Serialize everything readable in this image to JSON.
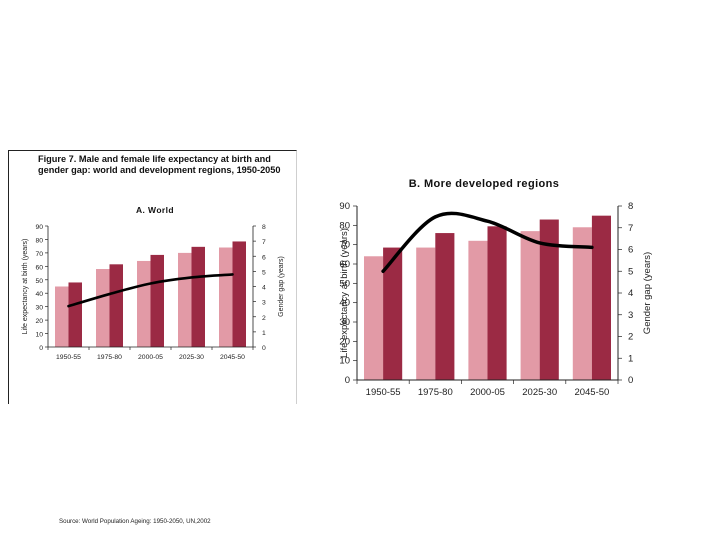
{
  "figure": {
    "title": "Figure 7. Male and female life expectancy at birth and gender gap: world and development regions, 1950-2050"
  },
  "source_note": "Source: World Population Ageing:  1950-2050, UN,2002",
  "colors": {
    "male_bar": "#e29aa6",
    "female_bar": "#9b2a44",
    "gap_line": "#000000"
  },
  "chart_data": [
    {
      "type": "bar",
      "title": "A. World",
      "categories": [
        "1950-55",
        "1975-80",
        "2000-05",
        "2025-30",
        "2045-50"
      ],
      "ylabel": "Life expectancy at birth (years)",
      "y2label": "Gender gap (years)",
      "ylim": [
        0,
        90
      ],
      "y_ticks": [
        0,
        10,
        20,
        30,
        40,
        50,
        60,
        70,
        80,
        90
      ],
      "y2lim": [
        0,
        8
      ],
      "y2_ticks": [
        0,
        1,
        2,
        3,
        4,
        5,
        6,
        7,
        8
      ],
      "series": [
        {
          "kind": "bar",
          "axis": "left",
          "color": "#e29aa6",
          "values": [
            45,
            58,
            64,
            70,
            74
          ]
        },
        {
          "kind": "bar",
          "axis": "left",
          "color": "#9b2a44",
          "values": [
            48,
            61.5,
            68.5,
            74.5,
            78.5
          ]
        },
        {
          "kind": "line",
          "axis": "right",
          "color": "#000000",
          "values": [
            2.7,
            3.5,
            4.2,
            4.6,
            4.8
          ]
        }
      ],
      "grid": false
    },
    {
      "type": "bar",
      "title": "B. More developed regions",
      "categories": [
        "1950-55",
        "1975-80",
        "2000-05",
        "2025-30",
        "2045-50"
      ],
      "ylabel": "Life expectancy at birth (years)",
      "y2label": "Gender gap (years)",
      "ylim": [
        0,
        90
      ],
      "y_ticks": [
        0,
        10,
        20,
        30,
        40,
        50,
        60,
        70,
        80,
        90
      ],
      "y2lim": [
        0,
        8
      ],
      "y2_ticks": [
        0,
        1,
        2,
        3,
        4,
        5,
        6,
        7,
        8
      ],
      "series": [
        {
          "kind": "bar",
          "axis": "left",
          "color": "#e29aa6",
          "values": [
            64,
            68.5,
            72,
            77,
            79
          ]
        },
        {
          "kind": "bar",
          "axis": "left",
          "color": "#9b2a44",
          "values": [
            68.5,
            76,
            79.5,
            83,
            85
          ]
        },
        {
          "kind": "line",
          "axis": "right",
          "color": "#000000",
          "values": [
            5.0,
            7.5,
            7.3,
            6.3,
            6.1
          ]
        }
      ],
      "grid": false
    }
  ]
}
